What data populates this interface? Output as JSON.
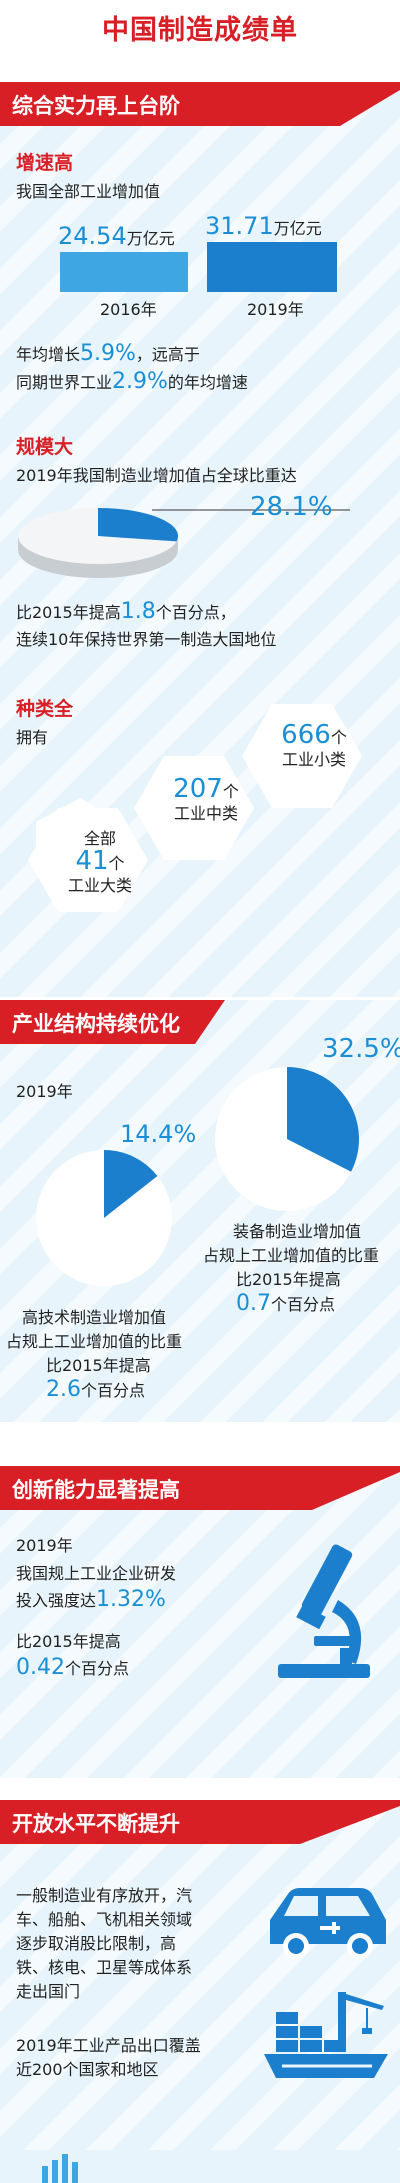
{
  "title": "中国制造成绩单",
  "colors": {
    "red": "#d81f26",
    "blue": "#1a8fd6",
    "panel": "#e8f4fb"
  },
  "s1": {
    "ribbon": "综合实力再上台阶",
    "growth": {
      "title": "增速高",
      "desc": "我国全部工业增加值",
      "v2016": "24.54",
      "v2019": "31.71",
      "unit": "万亿元",
      "y2016": "2016年",
      "y2019": "2019年",
      "line1_pre": "年均增长",
      "line1_num": "5.9%",
      "line1_post": "，远高于",
      "line2_pre": "同期世界工业",
      "line2_num": "2.9%",
      "line2_post": "的年均增速"
    },
    "scale": {
      "title": "规模大",
      "desc": "2019年我国制造业增加值占全球比重达",
      "share": "28.1%",
      "share_value": 28.1,
      "line1_pre": "比2015年提高",
      "line1_num": "1.8",
      "line1_post": "个百分点，",
      "line2": "连续10年保持世界第一制造大国地位"
    },
    "variety": {
      "title": "种类全",
      "have": "拥有",
      "hex1_top": "全部",
      "hex1_num": "41",
      "hex1_unit": "个",
      "hex1_label": "工业大类",
      "hex2_num": "207",
      "hex2_unit": "个",
      "hex2_label": "工业中类",
      "hex3_num": "666",
      "hex3_unit": "个",
      "hex3_label": "工业小类"
    }
  },
  "s2": {
    "ribbon": "产业结构持续优化",
    "year": "2019年",
    "equip_pct": "32.5%",
    "equip_value": 32.5,
    "equip_l1": "装备制造业增加值",
    "equip_l2": "占规上工业增加值的比重",
    "equip_l3": "比2015年提高",
    "equip_num": "0.7",
    "equip_post": "个百分点",
    "hitech_pct": "14.4%",
    "hitech_value": 14.4,
    "hitech_l1": "高技术制造业增加值",
    "hitech_l2": "占规上工业增加值的比重",
    "hitech_l3": "比2015年提高",
    "hitech_num": "2.6",
    "hitech_post": "个百分点"
  },
  "s3": {
    "ribbon": "创新能力显著提高",
    "year": "2019年",
    "l1": "我国规上工业企业研发",
    "l2_pre": "投入强度达",
    "l2_num": "1.32%",
    "l3": "比2015年提高",
    "l4_num": "0.42",
    "l4_post": "个百分点",
    "icon": "microscope-icon"
  },
  "s4": {
    "ribbon": "开放水平不断提升",
    "p1": [
      "一般制造业有序放开，汽",
      "车、船舶、飞机相关领域",
      "逐步取消股比限制，高",
      "铁、核电、卫星等成体系",
      "走出国门"
    ],
    "p2": [
      "2019年工业产品出口覆盖",
      "近200个国家和地区"
    ],
    "icons": [
      "electric-car-icon",
      "cargo-ship-icon"
    ]
  }
}
